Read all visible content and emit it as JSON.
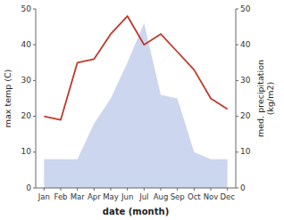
{
  "chart_data": {
    "type": "line",
    "xlabel": "date (month)",
    "ylabel": "max temp (C)",
    "y2label": "med. precipitation\n(kg/m2)",
    "categories": [
      "Jan",
      "Feb",
      "Mar",
      "Apr",
      "May",
      "Jun",
      "Jul",
      "Aug",
      "Sep",
      "Oct",
      "Nov",
      "Dec"
    ],
    "series": [
      {
        "type": "area",
        "color": "#b8c4e8",
        "values": [
          8,
          8,
          8,
          18,
          25,
          35,
          46,
          26,
          25,
          10,
          8,
          8
        ]
      },
      {
        "type": "line",
        "color": "#c0392b",
        "axis": "y2",
        "values": [
          20,
          19,
          35,
          36,
          43,
          48,
          40,
          43,
          38,
          33,
          25,
          22
        ]
      }
    ],
    "ylim": [
      0,
      50
    ],
    "yticks": [
      0,
      10,
      20,
      30,
      40,
      50
    ],
    "y2lim": [
      0,
      50
    ],
    "y2ticks": [
      0,
      10,
      20,
      30,
      40,
      50
    ],
    "grid": false
  }
}
